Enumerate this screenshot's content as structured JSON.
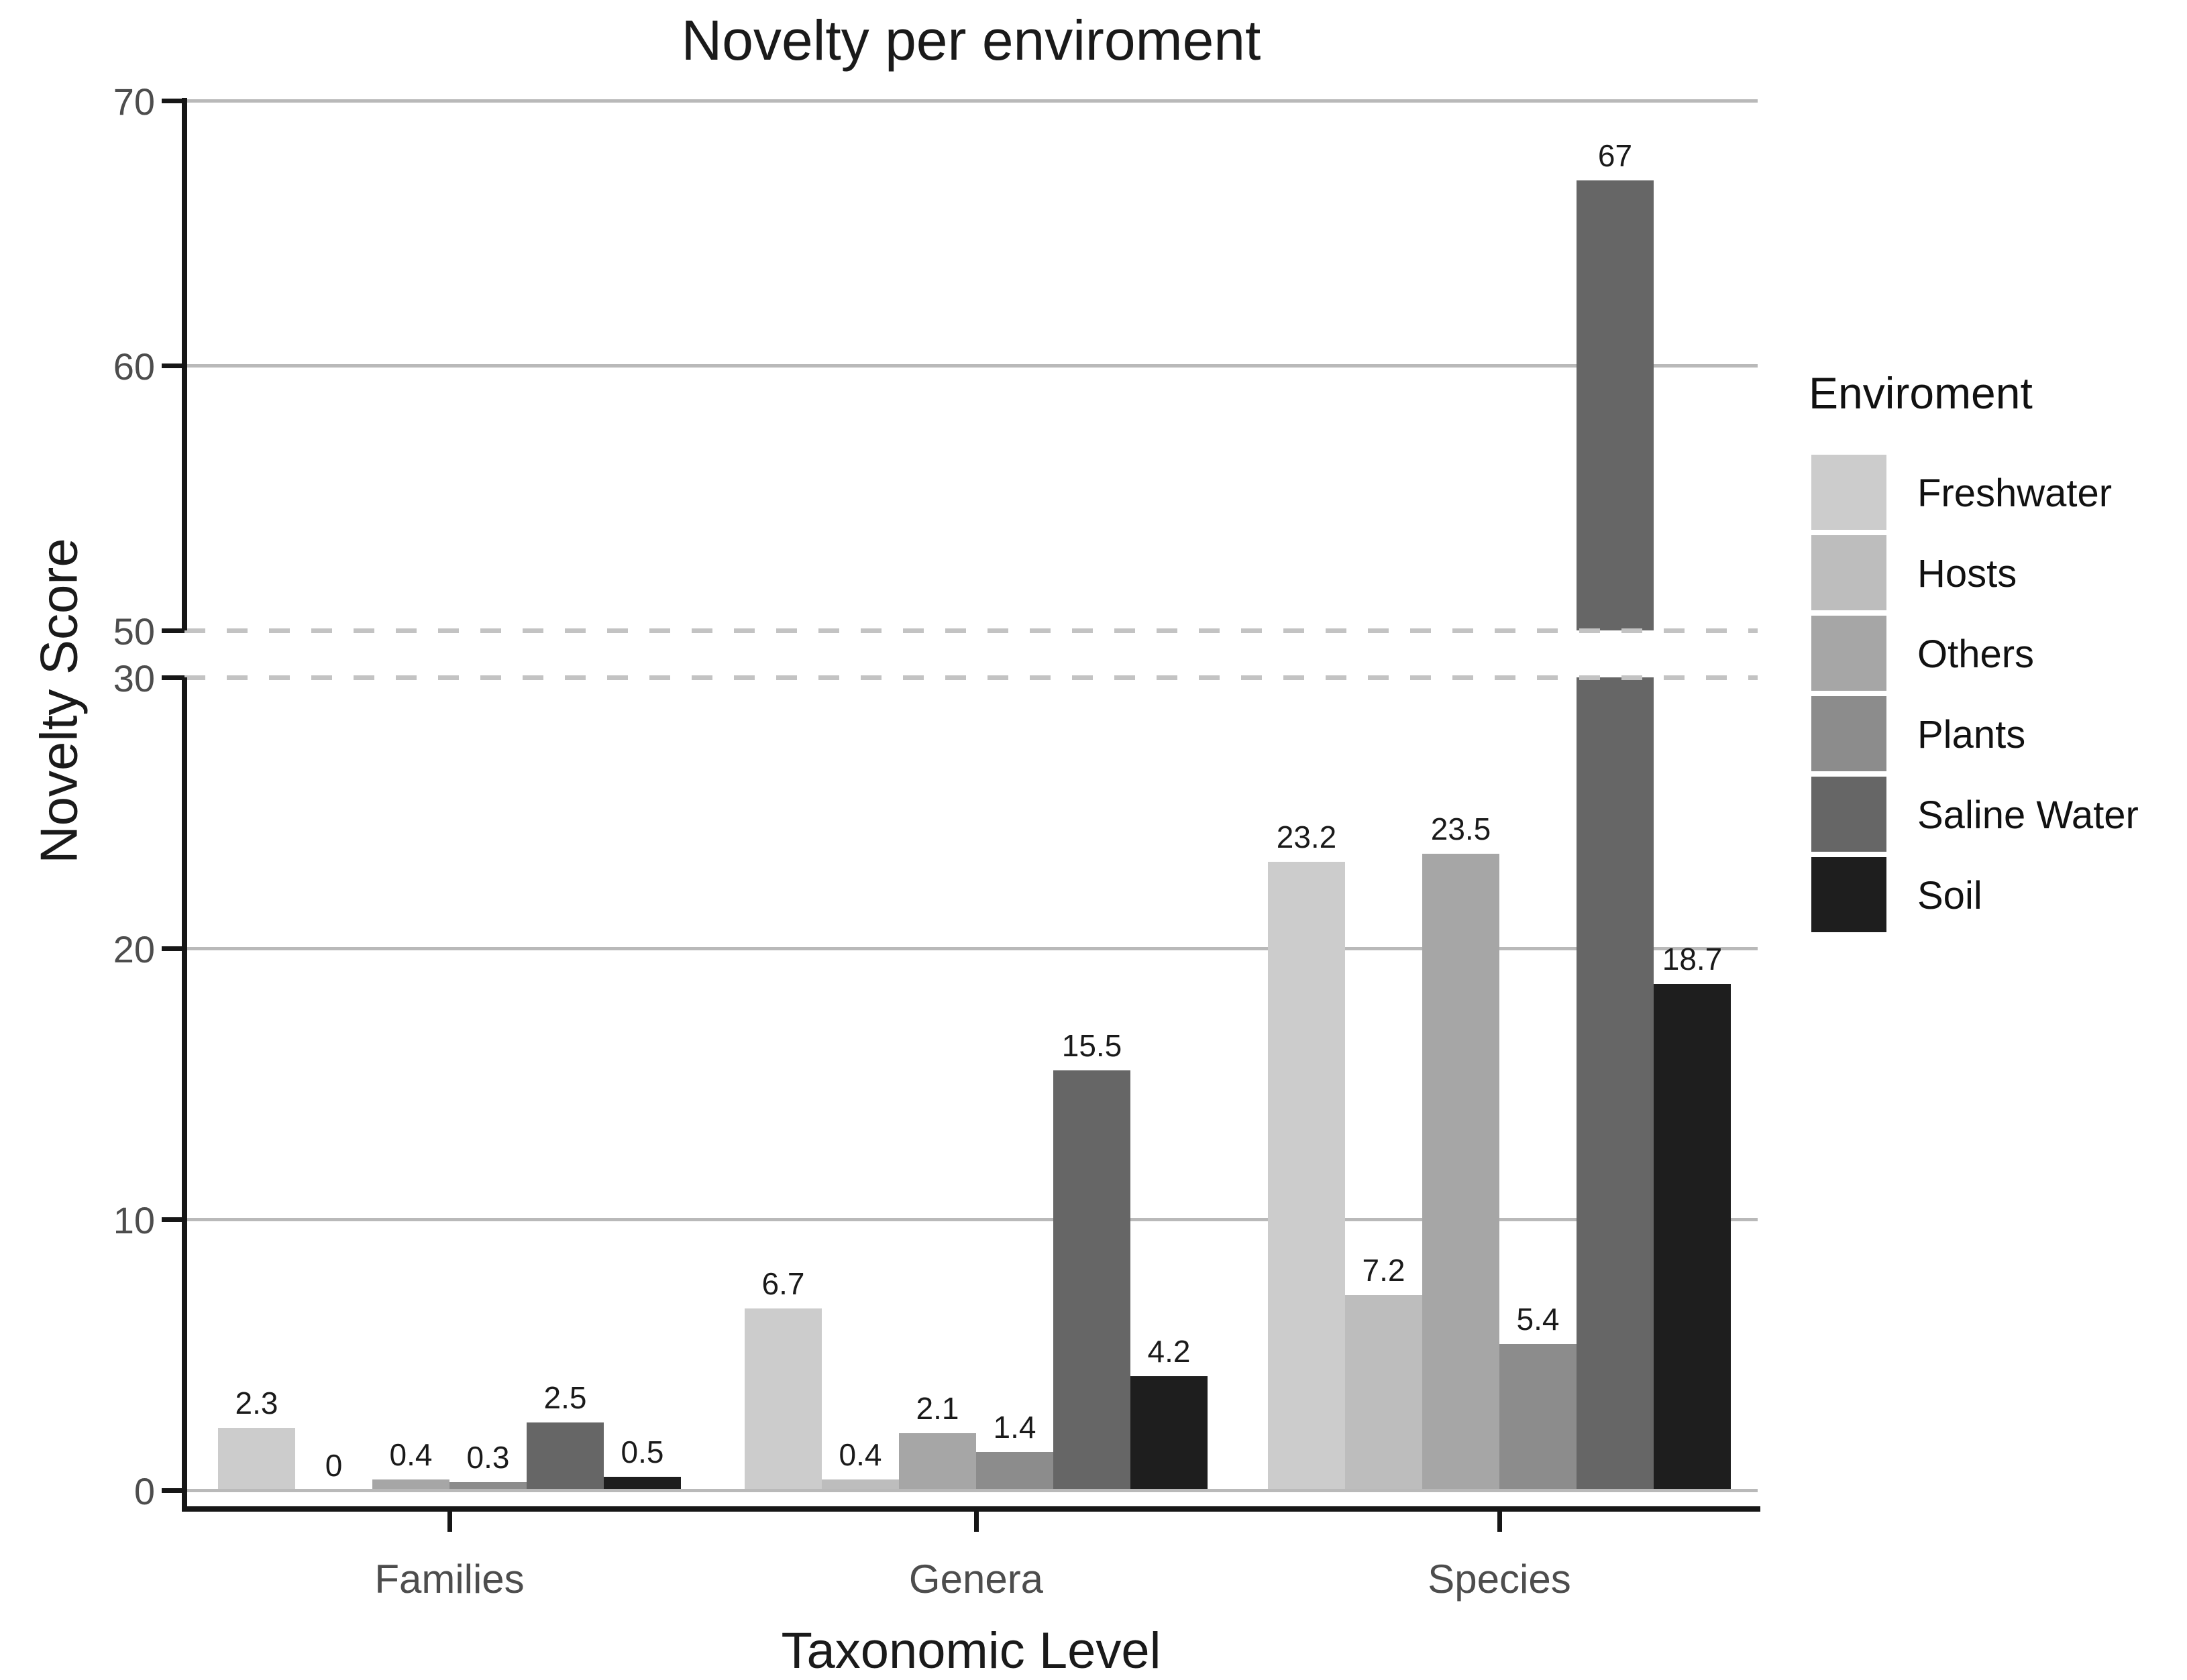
{
  "title": "Novelty per enviroment",
  "x_axis_title": "Taxonomic Level",
  "y_axis_title": "Novelty Score",
  "legend": {
    "title": "Enviroment",
    "entries": [
      {
        "label": "Freshwater",
        "color": "#cccccc"
      },
      {
        "label": "Hosts",
        "color": "#bdbdbd"
      },
      {
        "label": "Others",
        "color": "#a6a6a6"
      },
      {
        "label": "Plants",
        "color": "#8c8c8c"
      },
      {
        "label": "Saline Water",
        "color": "#666666"
      },
      {
        "label": "Soil",
        "color": "#1e1e1e"
      }
    ]
  },
  "chart_data": {
    "type": "bar",
    "title": "Novelty per enviroment",
    "xlabel": "Taxonomic Level",
    "ylabel": "Novelty Score",
    "categories": [
      "Families",
      "Genera",
      "Species"
    ],
    "series": [
      {
        "name": "Freshwater",
        "color": "#cccccc",
        "values": [
          2.3,
          6.7,
          23.2
        ]
      },
      {
        "name": "Hosts",
        "color": "#bdbdbd",
        "values": [
          0,
          0.4,
          7.2
        ]
      },
      {
        "name": "Others",
        "color": "#a6a6a6",
        "values": [
          0.4,
          2.1,
          23.5
        ]
      },
      {
        "name": "Plants",
        "color": "#8c8c8c",
        "values": [
          0.3,
          1.4,
          5.4
        ]
      },
      {
        "name": "Saline Water",
        "color": "#666666",
        "values": [
          2.5,
          15.5,
          67
        ]
      },
      {
        "name": "Soil",
        "color": "#1e1e1e",
        "values": [
          0.5,
          4.2,
          18.7
        ]
      }
    ],
    "bar_labels": [
      [
        "2.3",
        "0",
        "0.4",
        "0.3",
        "2.5",
        "0.5"
      ],
      [
        "6.7",
        "0.4",
        "2.1",
        "1.4",
        "15.5",
        "4.2"
      ],
      [
        "23.2",
        "7.2",
        "23.5",
        "5.4",
        "67",
        "18.7"
      ]
    ],
    "y_axis": {
      "broken": true,
      "lower_range": [
        0,
        30
      ],
      "upper_range": [
        50,
        70
      ],
      "lower_ticks": [
        0,
        10,
        20,
        30
      ],
      "upper_ticks": [
        50,
        60,
        70
      ],
      "solid_gridlines": [
        0,
        10,
        20,
        60,
        70
      ],
      "dashed_break_lines": [
        30,
        50
      ]
    },
    "grid": true,
    "legend_position": "right"
  }
}
